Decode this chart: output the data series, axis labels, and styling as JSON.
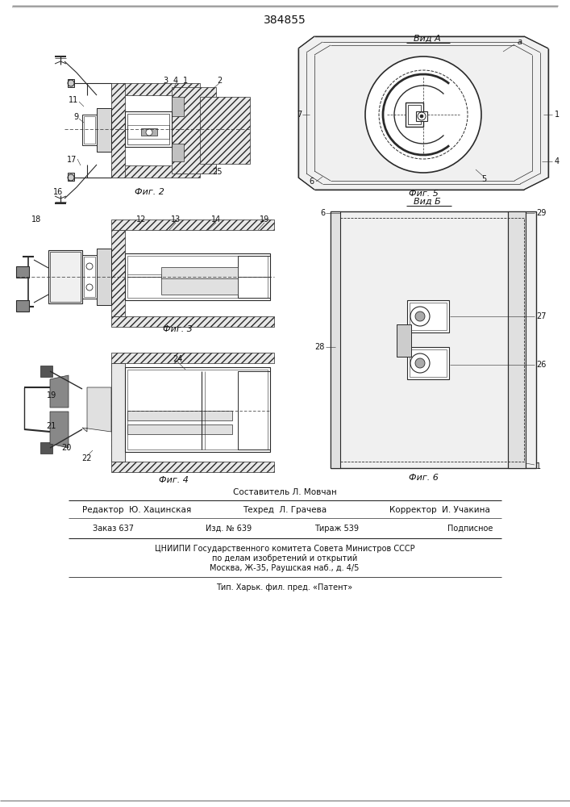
{
  "title": "384855",
  "bg_color": "#ffffff",
  "fig_width": 7.07,
  "fig_height": 10.0,
  "lc": "#2a2a2a",
  "footer": {
    "sostavitel": "Составитель Л. Мовчан",
    "redaktor": "Редактор  Ю. Хацинская",
    "tehred": "Техред  Л. Грачева",
    "korrektor": "Корректор  И. Учакина",
    "zakaz": "Заказ 637",
    "izd": "Изд. № 639",
    "tirazh": "Тираж 539",
    "podpisnoe": "Подписное",
    "cniip1": "ЦНИИПИ Государственного комитета Совета Министров СССР",
    "cniip2": "по делам изобретений и открытий",
    "cniip3": "Москва, Ж-35, Раушская наб., д. 4/5",
    "tip": "Тип. Харьк. фил. пред. «Патент»"
  },
  "fig2": {
    "wall_hatch": "////",
    "labels": [
      "3",
      "4",
      "1",
      "2",
      "11",
      "9",
      "17",
      "16",
      "25"
    ],
    "caption": "Фиг. 2"
  },
  "fig3": {
    "labels": [
      "18",
      "12",
      "13",
      "14",
      "19"
    ],
    "caption": "Фиг. 3"
  },
  "fig4": {
    "labels": [
      "20",
      "22",
      "21",
      "19",
      "24"
    ],
    "caption": "Фиг. 4"
  },
  "vida": {
    "title": "Вид А",
    "label_a": "a",
    "labels": [
      "7",
      "1",
      "4",
      "5",
      "6"
    ],
    "caption": "Фиг. 5"
  },
  "vidb": {
    "title": "Вид Б",
    "labels": [
      "28",
      "27",
      "26",
      "29",
      "1",
      "6"
    ],
    "caption": "Фиг. 6"
  }
}
